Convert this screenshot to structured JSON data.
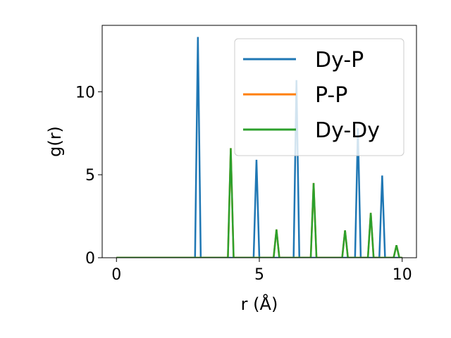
{
  "chart_data": {
    "type": "line",
    "xlabel": "r (Å)",
    "ylabel": "g(r)",
    "xlim": [
      -0.5,
      10.5
    ],
    "ylim": [
      0,
      14
    ],
    "xticks": [
      0,
      5,
      10
    ],
    "yticks": [
      0,
      5,
      10
    ],
    "grid": false,
    "legend_position": "top-right",
    "peak_half_width": 0.1,
    "x_start": 0.0,
    "x_end": 10.0,
    "series": [
      {
        "name": "Dy-P",
        "color": "#1f77b4",
        "peaks": [
          [
            2.85,
            13.3
          ],
          [
            4.9,
            5.9
          ],
          [
            6.3,
            10.7
          ],
          [
            8.45,
            7.8
          ],
          [
            9.3,
            4.95
          ]
        ]
      },
      {
        "name": "P-P",
        "color": "#ff7f0e",
        "peaks": [
          [
            4.0,
            6.6
          ],
          [
            5.6,
            1.7
          ],
          [
            6.9,
            4.5
          ],
          [
            8.0,
            1.65
          ],
          [
            8.9,
            2.7
          ],
          [
            9.8,
            0.75
          ]
        ]
      },
      {
        "name": "Dy-Dy",
        "color": "#2ca02c",
        "peaks": [
          [
            4.0,
            6.6
          ],
          [
            5.6,
            1.7
          ],
          [
            6.9,
            4.5
          ],
          [
            8.0,
            1.65
          ],
          [
            8.9,
            2.7
          ],
          [
            9.8,
            0.75
          ]
        ]
      }
    ]
  }
}
